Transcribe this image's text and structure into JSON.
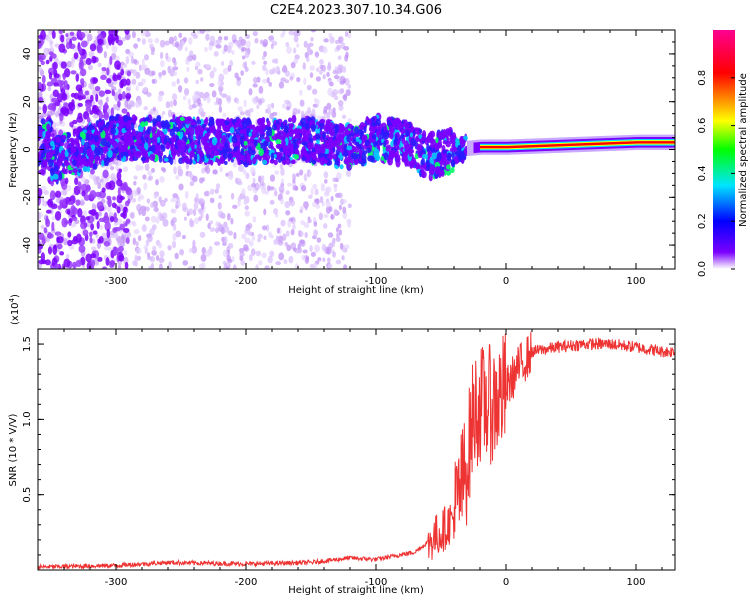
{
  "title": "C2E4.2023.307.10.34.G06",
  "chart_data": [
    {
      "type": "heatmap",
      "name": "spectrogram",
      "xlabel": "Height of straight line (km)",
      "ylabel": "Frequency (Hz)",
      "xlim": [
        -360,
        130
      ],
      "ylim": [
        -50,
        50
      ],
      "xticks": [
        -300,
        -200,
        -100,
        0,
        100
      ],
      "xtick_labels": [
        "-300",
        "-200",
        "-100",
        "0",
        "100"
      ],
      "yticks": [
        -40,
        -20,
        0,
        20,
        40
      ],
      "ytick_labels": [
        "-40",
        "-20",
        "0",
        "20",
        "40"
      ],
      "ridge": [
        {
          "x": -350,
          "f": -5
        },
        {
          "x": -300,
          "f": 5
        },
        {
          "x": -250,
          "f": 4
        },
        {
          "x": -200,
          "f": 3
        },
        {
          "x": -150,
          "f": 4
        },
        {
          "x": -120,
          "f": 1
        },
        {
          "x": -100,
          "f": 5
        },
        {
          "x": -80,
          "f": 3
        },
        {
          "x": -60,
          "f": -3
        },
        {
          "x": -40,
          "f": 0
        },
        {
          "x": -20,
          "f": 1
        },
        {
          "x": 0,
          "f": 1
        },
        {
          "x": 50,
          "f": 2
        },
        {
          "x": 100,
          "f": 3
        },
        {
          "x": 130,
          "f": 3
        }
      ],
      "colorbar": {
        "label": "Normalized spectral amplitude",
        "range": [
          0,
          1
        ],
        "ticks": [
          0.0,
          0.2,
          0.4,
          0.6,
          0.8
        ],
        "tick_labels": [
          "0.0",
          "0.2",
          "0.4",
          "0.6",
          "0.8"
        ],
        "colors": [
          "#ffffff",
          "#7b00ff",
          "#0000ff",
          "#00e5ff",
          "#00ff00",
          "#ffff00",
          "#ff0000",
          "#ff0090"
        ]
      }
    },
    {
      "type": "line",
      "name": "snr",
      "xlabel": "Height of straight line (km)",
      "ylabel": "SNR (10 * V/V)",
      "scale_label": "(x10",
      "scale_exponent": "4",
      "xlim": [
        -360,
        130
      ],
      "ylim": [
        0,
        1.6
      ],
      "xticks": [
        -300,
        -200,
        -100,
        0,
        100
      ],
      "xtick_labels": [
        "-300",
        "-200",
        "-100",
        "0",
        "100"
      ],
      "yticks": [
        0.5,
        1.0,
        1.5
      ],
      "ytick_labels": [
        "0.5",
        "1.0",
        "1.5"
      ],
      "color": "#ee3333",
      "series": [
        {
          "name": "SNR",
          "x": [
            -360,
            -300,
            -260,
            -200,
            -150,
            -120,
            -100,
            -70,
            -50,
            -40,
            -30,
            -25,
            -20,
            -10,
            0,
            10,
            20,
            40,
            60,
            80,
            100,
            120,
            130
          ],
          "y": [
            0.02,
            0.03,
            0.05,
            0.04,
            0.05,
            0.08,
            0.07,
            0.12,
            0.25,
            0.35,
            0.7,
            1.05,
            1.1,
            1.1,
            1.2,
            1.35,
            1.45,
            1.48,
            1.5,
            1.5,
            1.48,
            1.45,
            1.45
          ]
        }
      ]
    }
  ]
}
